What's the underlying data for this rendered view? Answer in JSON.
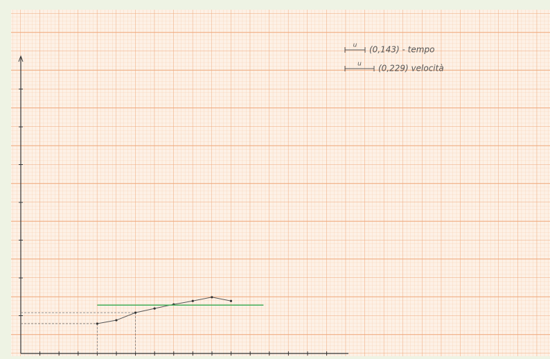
{
  "chart_data": {
    "type": "line",
    "notes": [
      {
        "unit": "u",
        "text": "(0,143) - tempo"
      },
      {
        "unit": "u",
        "text": "(0,229) velocità"
      }
    ],
    "xlim": [
      0,
      17
    ],
    "ylim": [
      0,
      7.8
    ],
    "series": [
      {
        "color": "#555555",
        "x": [
          4,
          5,
          6,
          7,
          8,
          9,
          10,
          11
        ],
        "values": [
          0.79,
          0.88,
          1.08,
          1.19,
          1.3,
          1.39,
          1.49,
          1.39
        ]
      },
      {
        "color": "#3fae5a",
        "x": [
          4,
          12.7
        ],
        "values": [
          1.28,
          1.28
        ]
      }
    ]
  }
}
